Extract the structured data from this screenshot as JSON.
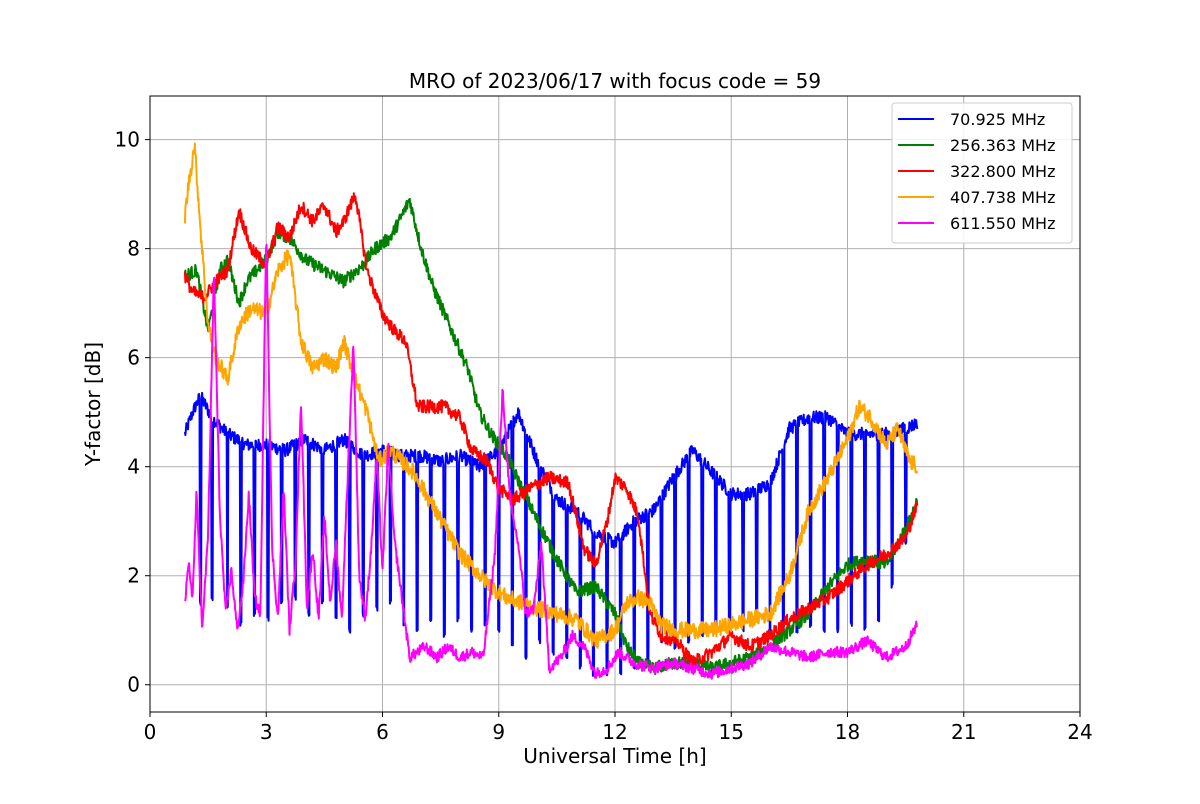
{
  "chart_data": {
    "type": "line",
    "title": "MRO of 2023/06/17 with focus code = 59",
    "xlabel": "Universal Time [h]",
    "ylabel": "Y-factor [dB]",
    "xlim": [
      0,
      24
    ],
    "ylim": [
      -0.5,
      10.8
    ],
    "xticks": [
      0,
      3,
      6,
      9,
      12,
      15,
      18,
      21,
      24
    ],
    "yticks": [
      0,
      2,
      4,
      6,
      8,
      10
    ],
    "grid": true,
    "legend_position": "top-right",
    "series": [
      {
        "name": "70.925 MHz",
        "color": "#0000ff",
        "noise": 0.12,
        "x": [
          0.9,
          1.1,
          1.3,
          1.6,
          2.0,
          2.5,
          3.0,
          3.5,
          4.0,
          4.5,
          5.0,
          5.5,
          6.0,
          6.5,
          7.0,
          7.5,
          8.0,
          8.5,
          9.0,
          9.5,
          10.0,
          10.5,
          11.0,
          11.5,
          12.0,
          12.5,
          13.0,
          13.5,
          14.0,
          14.5,
          15.0,
          15.5,
          16.0,
          16.5,
          17.0,
          17.5,
          18.0,
          18.5,
          19.0,
          19.5,
          19.8
        ],
        "y": [
          4.6,
          5.0,
          5.3,
          4.9,
          4.6,
          4.4,
          4.4,
          4.3,
          4.5,
          4.3,
          4.5,
          4.2,
          4.3,
          4.2,
          4.2,
          4.1,
          4.2,
          4.0,
          4.3,
          5.0,
          4.1,
          3.4,
          3.2,
          2.8,
          2.6,
          3.0,
          3.2,
          3.8,
          4.3,
          3.9,
          3.5,
          3.5,
          3.7,
          4.7,
          4.9,
          4.9,
          4.6,
          4.6,
          4.6,
          4.7,
          4.8
        ],
        "dip_x": [
          1.3,
          1.6,
          2.0,
          2.35,
          2.7,
          3.05,
          3.4,
          3.75,
          4.1,
          4.45,
          4.8,
          5.15,
          5.5,
          5.85,
          6.2,
          6.55,
          6.9,
          7.25,
          7.6,
          7.95,
          8.3,
          8.65,
          9.0,
          9.35,
          9.7,
          10.05,
          10.4,
          10.75,
          11.1,
          11.45,
          11.8,
          12.15,
          12.5,
          12.85,
          13.2,
          13.55,
          13.9,
          14.25,
          14.6,
          14.95,
          15.3,
          15.65,
          16.0,
          16.35,
          16.7,
          17.05,
          17.4,
          17.75,
          18.1,
          18.45,
          18.8,
          19.15,
          19.5
        ],
        "dip_y": [
          1.5,
          1.6,
          1.4,
          1.1,
          1.3,
          1.2,
          1.5,
          1.6,
          1.3,
          1.5,
          1.2,
          1.0,
          1.3,
          1.4,
          1.5,
          1.1,
          1.0,
          1.2,
          0.9,
          1.2,
          1.0,
          1.1,
          1.0,
          0.7,
          0.5,
          0.8,
          0.6,
          0.5,
          0.3,
          0.2,
          0.2,
          0.2,
          0.3,
          0.4,
          0.8,
          0.7,
          0.8,
          0.9,
          1.0,
          1.1,
          1.0,
          1.2,
          1.0,
          1.1,
          1.0,
          1.1,
          1.0,
          1.0,
          1.1,
          1.0,
          1.2,
          1.8,
          2.6
        ]
      },
      {
        "name": "256.363 MHz",
        "color": "#008000",
        "noise": 0.12,
        "x": [
          0.9,
          1.2,
          1.5,
          1.8,
          2.0,
          2.3,
          2.5,
          3.0,
          3.3,
          3.6,
          4.0,
          4.5,
          5.0,
          5.5,
          5.8,
          6.2,
          6.5,
          6.7,
          7.0,
          7.3,
          7.6,
          7.9,
          8.2,
          8.5,
          8.8,
          9.2,
          9.6,
          10.0,
          10.5,
          11.0,
          11.5,
          12.0,
          12.3,
          12.6,
          13.0,
          13.5,
          14.0,
          14.5,
          15.0,
          15.5,
          16.0,
          16.5,
          17.0,
          17.5,
          18.0,
          18.5,
          19.0,
          19.3,
          19.6,
          19.8
        ],
        "y": [
          7.5,
          7.6,
          6.5,
          7.6,
          7.8,
          7.0,
          7.4,
          7.8,
          8.3,
          8.2,
          7.8,
          7.6,
          7.4,
          7.7,
          8.0,
          8.2,
          8.6,
          8.9,
          8.0,
          7.3,
          6.8,
          6.3,
          5.8,
          5.0,
          4.6,
          4.2,
          3.6,
          3.0,
          2.3,
          1.7,
          1.8,
          1.3,
          0.7,
          0.4,
          0.3,
          0.4,
          0.4,
          0.3,
          0.4,
          0.5,
          0.7,
          1.0,
          1.3,
          1.8,
          2.2,
          2.3,
          2.2,
          2.6,
          3.0,
          3.4
        ]
      },
      {
        "name": "322.800 MHz",
        "color": "#ff0000",
        "noise": 0.12,
        "x": [
          0.9,
          1.1,
          1.4,
          1.7,
          2.0,
          2.3,
          2.6,
          3.0,
          3.3,
          3.6,
          3.9,
          4.2,
          4.5,
          4.8,
          5.0,
          5.3,
          5.6,
          6.0,
          6.3,
          6.6,
          6.9,
          7.3,
          7.6,
          8.0,
          8.3,
          8.7,
          9.0,
          9.4,
          9.8,
          10.3,
          10.8,
          11.2,
          11.5,
          11.8,
          12.0,
          12.3,
          12.6,
          12.9,
          13.2,
          13.6,
          14.0,
          14.5,
          15.0,
          15.5,
          16.0,
          16.5,
          17.0,
          17.5,
          18.0,
          18.5,
          19.0,
          19.5,
          19.8
        ],
        "y": [
          7.5,
          7.2,
          7.1,
          7.4,
          7.6,
          8.7,
          8.0,
          7.7,
          8.4,
          8.2,
          8.8,
          8.5,
          8.8,
          8.3,
          8.5,
          9.0,
          7.6,
          6.8,
          6.5,
          6.3,
          5.1,
          5.1,
          5.1,
          4.9,
          4.3,
          4.1,
          3.6,
          3.4,
          3.6,
          3.8,
          3.7,
          2.5,
          2.2,
          3.0,
          3.8,
          3.6,
          3.1,
          1.3,
          0.9,
          0.8,
          0.4,
          0.6,
          0.9,
          0.7,
          0.9,
          1.2,
          1.4,
          1.6,
          1.9,
          2.2,
          2.4,
          2.7,
          3.3
        ]
      },
      {
        "name": "407.738 MHz",
        "color": "#ffa500",
        "noise": 0.15,
        "x": [
          0.9,
          1.0,
          1.15,
          1.3,
          1.5,
          1.7,
          2.0,
          2.3,
          2.6,
          3.0,
          3.3,
          3.6,
          3.9,
          4.2,
          4.5,
          4.8,
          5.0,
          5.3,
          5.6,
          5.9,
          6.2,
          6.5,
          6.8,
          7.2,
          7.6,
          8.0,
          8.4,
          8.8,
          9.2,
          9.6,
          10.0,
          10.5,
          11.0,
          11.5,
          12.0,
          12.3,
          12.6,
          12.9,
          13.2,
          13.6,
          14.0,
          14.5,
          15.0,
          15.5,
          16.0,
          16.5,
          17.0,
          17.5,
          18.0,
          18.3,
          18.6,
          19.0,
          19.3,
          19.6,
          19.8
        ],
        "y": [
          8.6,
          9.2,
          9.9,
          8.4,
          6.6,
          6.0,
          5.6,
          6.6,
          6.9,
          6.8,
          7.6,
          7.9,
          6.3,
          5.8,
          6.0,
          5.8,
          6.3,
          5.6,
          5.0,
          4.1,
          4.3,
          4.1,
          3.9,
          3.4,
          2.9,
          2.4,
          2.1,
          1.8,
          1.6,
          1.5,
          1.4,
          1.3,
          1.2,
          0.8,
          1.0,
          1.5,
          1.6,
          1.5,
          1.1,
          1.0,
          1.0,
          1.0,
          1.1,
          1.2,
          1.3,
          2.0,
          3.2,
          3.8,
          4.5,
          5.1,
          4.9,
          4.4,
          4.7,
          4.1,
          4.0
        ]
      },
      {
        "name": "611.550 MHz",
        "color": "#ff00ff",
        "noise": 0.1,
        "x": [
          0.9,
          1.0,
          1.1,
          1.2,
          1.35,
          1.5,
          1.65,
          1.8,
          1.95,
          2.1,
          2.25,
          2.4,
          2.55,
          2.7,
          2.85,
          3.0,
          3.15,
          3.3,
          3.45,
          3.6,
          3.75,
          3.9,
          4.05,
          4.2,
          4.35,
          4.5,
          4.65,
          4.8,
          4.95,
          5.1,
          5.25,
          5.4,
          5.55,
          5.7,
          5.85,
          6.0,
          6.15,
          6.3,
          6.5,
          6.7,
          6.9,
          7.1,
          7.4,
          7.7,
          8.0,
          8.3,
          8.6,
          8.9,
          9.1,
          9.3,
          9.5,
          9.7,
          9.9,
          10.1,
          10.3,
          10.6,
          10.9,
          11.2,
          11.5,
          11.8,
          12.1,
          12.5,
          13.0,
          13.5,
          14.0,
          14.5,
          15.0,
          15.5,
          16.0,
          16.5,
          17.0,
          17.5,
          18.0,
          18.5,
          19.0,
          19.5,
          19.8
        ],
        "y": [
          1.5,
          2.2,
          1.6,
          3.5,
          1.0,
          2.8,
          7.6,
          3.2,
          1.3,
          2.1,
          1.0,
          1.8,
          3.5,
          1.6,
          1.3,
          8.4,
          2.5,
          1.2,
          3.6,
          1.0,
          2.2,
          5.2,
          1.4,
          2.5,
          1.2,
          3.1,
          1.5,
          2.6,
          1.2,
          3.8,
          6.3,
          2.0,
          1.2,
          2.4,
          4.2,
          2.1,
          4.4,
          2.7,
          1.6,
          0.5,
          0.6,
          0.7,
          0.5,
          0.7,
          0.5,
          0.6,
          0.5,
          2.4,
          5.4,
          3.3,
          2.6,
          1.3,
          1.4,
          2.6,
          0.3,
          0.5,
          0.9,
          0.7,
          0.2,
          0.3,
          0.6,
          0.4,
          0.3,
          0.4,
          0.3,
          0.2,
          0.3,
          0.4,
          0.7,
          0.6,
          0.5,
          0.6,
          0.6,
          0.8,
          0.5,
          0.7,
          1.1
        ]
      }
    ]
  }
}
